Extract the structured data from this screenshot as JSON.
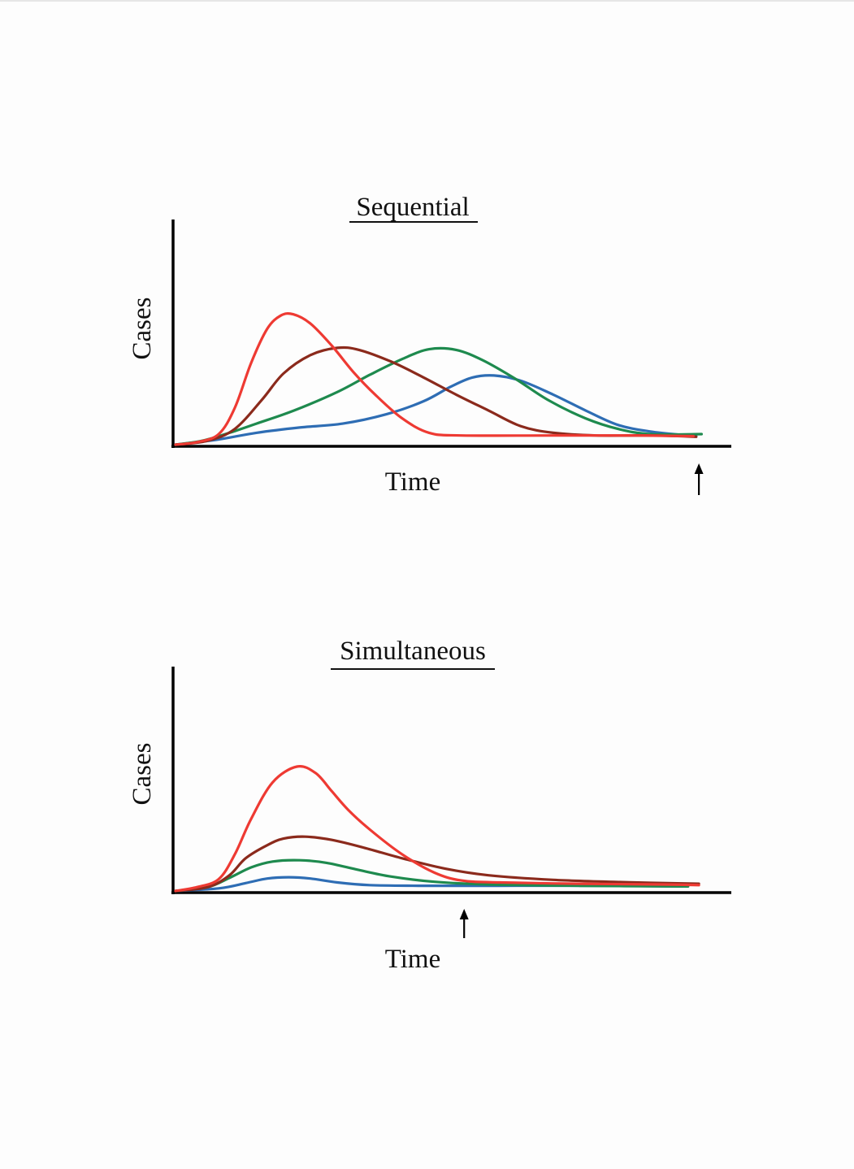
{
  "chart_data": [
    {
      "type": "line",
      "title": "Sequential",
      "xlabel": "Time",
      "ylabel": "Cases",
      "xlim": [
        0,
        100
      ],
      "ylim": [
        0,
        100
      ],
      "grid": false,
      "axis_ticks": false,
      "marker": {
        "type": "up-arrow",
        "x": 97
      },
      "series": [
        {
          "name": "red",
          "color": "#ee3a33",
          "points": [
            [
              0,
              0
            ],
            [
              4,
              2
            ],
            [
              8,
              8
            ],
            [
              11,
              28
            ],
            [
              14,
              62
            ],
            [
              17,
              88
            ],
            [
              19.5,
              98
            ],
            [
              21.8,
              99
            ],
            [
              25,
              92
            ],
            [
              29,
              75
            ],
            [
              33,
              55
            ],
            [
              37,
              38
            ],
            [
              42,
              20
            ],
            [
              47,
              9
            ],
            [
              53,
              7
            ],
            [
              70,
              7
            ],
            [
              85,
              7
            ],
            [
              96,
              6.5
            ]
          ]
        },
        {
          "name": "brown",
          "color": "#8b2a1c",
          "points": [
            [
              0,
              0
            ],
            [
              6,
              3
            ],
            [
              11,
              12
            ],
            [
              16,
              34
            ],
            [
              20,
              54
            ],
            [
              25,
              68
            ],
            [
              30,
              73.5
            ],
            [
              34,
              72
            ],
            [
              40,
              63
            ],
            [
              46,
              51
            ],
            [
              52,
              38
            ],
            [
              58,
              26
            ],
            [
              64,
              14
            ],
            [
              70,
              9
            ],
            [
              78,
              7
            ],
            [
              88,
              7
            ],
            [
              96.5,
              6
            ]
          ]
        },
        {
          "name": "green",
          "color": "#1e8a4e",
          "points": [
            [
              0,
              0
            ],
            [
              5,
              3
            ],
            [
              10,
              9
            ],
            [
              15,
              16
            ],
            [
              22,
              26
            ],
            [
              30,
              40
            ],
            [
              36,
              53
            ],
            [
              42,
              65
            ],
            [
              47,
              72.5
            ],
            [
              52,
              72
            ],
            [
              57,
              64
            ],
            [
              63,
              50
            ],
            [
              69,
              34
            ],
            [
              76,
              20
            ],
            [
              82,
              12
            ],
            [
              88,
              8
            ],
            [
              97.5,
              8
            ]
          ]
        },
        {
          "name": "blue",
          "color": "#2e6db4",
          "points": [
            [
              0,
              0
            ],
            [
              8,
              4
            ],
            [
              15,
              9
            ],
            [
              23,
              13
            ],
            [
              31,
              16
            ],
            [
              39,
              23
            ],
            [
              46,
              33
            ],
            [
              51,
              44
            ],
            [
              55,
              51
            ],
            [
              59,
              52.5
            ],
            [
              64,
              48.5
            ],
            [
              70,
              38
            ],
            [
              76,
              26
            ],
            [
              82,
              15
            ],
            [
              88,
              10
            ],
            [
              95,
              7
            ],
            [
              96.5,
              6.5
            ]
          ]
        }
      ]
    },
    {
      "type": "line",
      "title": "Simultaneous",
      "xlabel": "Time",
      "ylabel": "Cases",
      "xlim": [
        0,
        100
      ],
      "ylim": [
        0,
        100
      ],
      "grid": false,
      "axis_ticks": false,
      "marker": {
        "type": "up-arrow",
        "x": 53.5
      },
      "series": [
        {
          "name": "red",
          "color": "#ee3a33",
          "points": [
            [
              0,
              0
            ],
            [
              4,
              3
            ],
            [
              8,
              9
            ],
            [
              11,
              28
            ],
            [
              14,
              55
            ],
            [
              18,
              83
            ],
            [
              22.5,
              95
            ],
            [
              26,
              90
            ],
            [
              29,
              76
            ],
            [
              32,
              62
            ],
            [
              36,
              47
            ],
            [
              42,
              28
            ],
            [
              48,
              14
            ],
            [
              53,
              8
            ],
            [
              60,
              6.5
            ],
            [
              75,
              5.5
            ],
            [
              90,
              5
            ],
            [
              97,
              4.5
            ]
          ]
        },
        {
          "name": "brown",
          "color": "#8b2a1c",
          "points": [
            [
              0,
              0
            ],
            [
              6,
              3
            ],
            [
              10,
              12
            ],
            [
              13,
              25
            ],
            [
              17,
              35
            ],
            [
              20,
              40
            ],
            [
              24,
              41.5
            ],
            [
              29,
              39
            ],
            [
              35,
              33
            ],
            [
              42,
              25
            ],
            [
              50,
              17
            ],
            [
              58,
              12
            ],
            [
              70,
              8.5
            ],
            [
              85,
              6.5
            ],
            [
              97,
              5.5
            ]
          ]
        },
        {
          "name": "green",
          "color": "#1e8a4e",
          "points": [
            [
              0,
              0
            ],
            [
              6,
              3
            ],
            [
              10,
              10
            ],
            [
              14,
              18
            ],
            [
              18,
              22.5
            ],
            [
              23,
              23.5
            ],
            [
              28,
              21.5
            ],
            [
              34,
              16
            ],
            [
              40,
              11
            ],
            [
              48,
              7
            ],
            [
              58,
              5
            ],
            [
              75,
              4
            ],
            [
              95,
              3.5
            ]
          ]
        },
        {
          "name": "blue",
          "color": "#2e6db4",
          "points": [
            [
              0,
              0
            ],
            [
              8,
              2
            ],
            [
              13,
              6
            ],
            [
              17,
              9.5
            ],
            [
              21,
              10.5
            ],
            [
              25,
              9.5
            ],
            [
              30,
              6.5
            ],
            [
              36,
              4.5
            ],
            [
              45,
              4
            ],
            [
              60,
              4
            ],
            [
              80,
              4
            ],
            [
              94,
              3.5
            ]
          ]
        }
      ]
    }
  ]
}
